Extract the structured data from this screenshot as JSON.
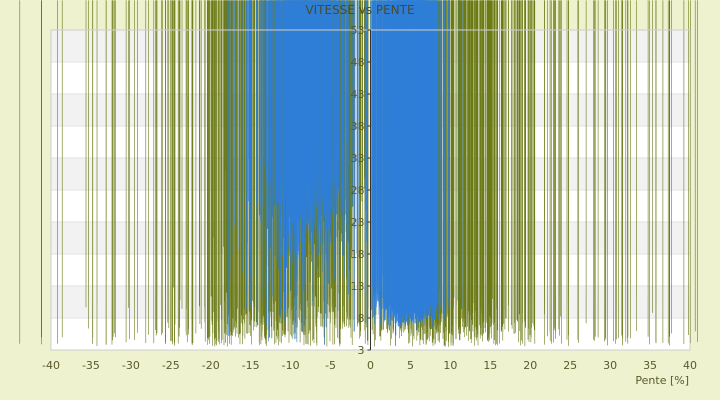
{
  "chart_data": {
    "type": "scatter",
    "title": "VITESSE vs PENTE",
    "xlabel": "Pente [%]",
    "ylabel": "",
    "xlim": [
      -40,
      40
    ],
    "ylim": [
      3,
      53
    ],
    "x_ticks": [
      "-40",
      "-35",
      "-30",
      "-25",
      "-20",
      "-15",
      "-10",
      "-5",
      "0",
      "5",
      "10",
      "15",
      "20",
      "25",
      "30",
      "35",
      "40"
    ],
    "y_ticks": [
      "3",
      "8",
      "13",
      "18",
      "23",
      "28",
      "33",
      "38",
      "43",
      "48",
      "53"
    ],
    "grid": "horizontal bands",
    "legend": "none",
    "colors": {
      "plot_bg": "#ffffff",
      "band": "#f2f2f2",
      "page_bg": "#eef2cf",
      "blue_series": "#2f7fd8",
      "olive_series": "#6b7a16",
      "axis": "#333333"
    },
    "series": [
      {
        "color": "#2f7fd8",
        "marker": "diamond",
        "clusters": [
          {
            "x_mean": -8,
            "x_sd": 2.6,
            "y_mean": 26,
            "y_sd": 5,
            "count": 520
          },
          {
            "x_mean": 5,
            "x_sd": 1.8,
            "y_mean": 9.2,
            "y_sd": 1.3,
            "count": 650
          },
          {
            "x_mean": -11,
            "x_sd": 4,
            "y_mean": 16,
            "y_sd": 6,
            "count": 120
          },
          {
            "x_mean": 1,
            "x_sd": 0.6,
            "y_mean": 11,
            "y_sd": 2,
            "count": 60
          }
        ]
      },
      {
        "color": "#6b7a16",
        "marker": "diamond",
        "clusters": [
          {
            "x_mean": -7,
            "x_sd": 3.2,
            "y_mean": 24,
            "y_sd": 6,
            "count": 260
          },
          {
            "x_mean": -12,
            "x_sd": 7,
            "y_mean": 7,
            "y_sd": 2.2,
            "count": 330
          },
          {
            "x_mean": 9,
            "x_sd": 6,
            "y_mean": 6.5,
            "y_sd": 1.8,
            "count": 380
          },
          {
            "x_mean": -22,
            "x_sd": 9,
            "y_mean": 4.5,
            "y_sd": 1.2,
            "count": 90
          },
          {
            "x_mean": 22,
            "x_sd": 10,
            "y_mean": 4.5,
            "y_sd": 1.2,
            "count": 90
          }
        ]
      }
    ]
  }
}
